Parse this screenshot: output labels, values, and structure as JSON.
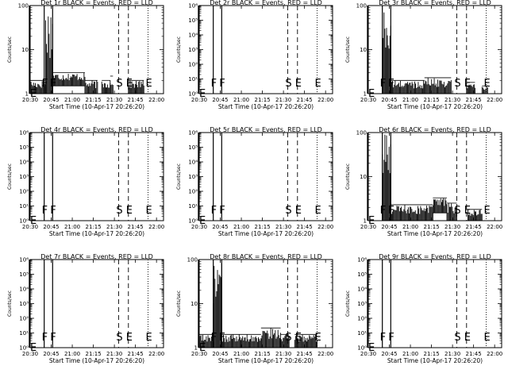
{
  "x_tick_labels": [
    "20:30",
    "20:45",
    "21:00",
    "21:15",
    "21:30",
    "21:45",
    "22:00"
  ],
  "x_label": "Start Time (10-Apr-17 20:26:20)",
  "y_label": "Counts/sec",
  "event_markers": [
    {
      "letter": "E",
      "minute": 3.4,
      "style": "solid"
    },
    {
      "letter": "F",
      "minute": 14,
      "style": "solid"
    },
    {
      "letter": "F",
      "minute": 20,
      "style": "solid"
    },
    {
      "letter": "S",
      "minute": 67,
      "style": "dashed"
    },
    {
      "letter": "E",
      "minute": 74,
      "style": "dashed"
    },
    {
      "letter": "E",
      "minute": 88,
      "style": "dotted"
    }
  ],
  "colors": {
    "events": "#000000",
    "lld": "#ff0000",
    "axes": "#000000"
  },
  "chart_data": [
    {
      "type": "line",
      "title": "Det 1r BLACK = Events, RED = LLD",
      "x_unit": "minutes since 20:26:20",
      "xlim": [
        4,
        99
      ],
      "y_scale": "log",
      "ylim": [
        1,
        100
      ],
      "y_tick_labels": [
        "1",
        "10",
        "100"
      ],
      "series": [
        {
          "name": "Events",
          "color": "#000000",
          "segments": [
            {
              "x0": 4,
              "x1": 15,
              "low": 1,
              "high": 2
            },
            {
              "x0": 15,
              "x1": 20,
              "low": 1,
              "high": 100
            },
            {
              "x0": 20,
              "x1": 43,
              "low": 1.5,
              "high": 3
            },
            {
              "x0": 43,
              "x1": 52,
              "low": 1,
              "high": 2
            },
            {
              "x0": 55,
              "x1": 61,
              "low": 1,
              "high": 2
            },
            {
              "x0": 61,
              "x1": 63,
              "low": 1,
              "high": 2.5
            },
            {
              "x0": 74,
              "x1": 85,
              "low": 1,
              "high": 2
            }
          ]
        }
      ]
    },
    {
      "type": "line",
      "title": "Det 2r BLACK = Events, RED = LLD",
      "x_unit": "minutes since 20:26:20",
      "xlim": [
        4,
        99
      ],
      "y_scale": "log",
      "ylim": [
        1,
        1000000
      ],
      "y_tick_labels": [
        "10⁰",
        "10¹",
        "10²",
        "10³",
        "10⁴",
        "10⁵",
        "10⁶"
      ],
      "series": [
        {
          "name": "Events",
          "color": "#000000",
          "segments": []
        }
      ]
    },
    {
      "type": "line",
      "title": "Det 3r BLACK = Events, RED = LLD",
      "x_unit": "minutes since 20:26:20",
      "xlim": [
        4,
        99
      ],
      "y_scale": "log",
      "ylim": [
        1,
        100
      ],
      "y_tick_labels": [
        "1",
        "10",
        "100"
      ],
      "series": [
        {
          "name": "Events",
          "color": "#000000",
          "segments": [
            {
              "x0": 14,
              "x1": 20,
              "low": 1,
              "high": 100
            },
            {
              "x0": 20,
              "x1": 44,
              "low": 1,
              "high": 2
            },
            {
              "x0": 44,
              "x1": 63,
              "low": 1,
              "high": 2.3
            },
            {
              "x0": 74,
              "x1": 80,
              "low": 1,
              "high": 1.8
            },
            {
              "x0": 85,
              "x1": 89,
              "low": 1,
              "high": 1.5
            }
          ]
        }
      ]
    },
    {
      "type": "line",
      "title": "Det 4r BLACK = Events, RED = LLD",
      "x_unit": "minutes since 20:26:20",
      "xlim": [
        4,
        99
      ],
      "y_scale": "log",
      "ylim": [
        1,
        1000000
      ],
      "y_tick_labels": [
        "10⁰",
        "10¹",
        "10²",
        "10³",
        "10⁴",
        "10⁵",
        "10⁶"
      ],
      "series": [
        {
          "name": "Events",
          "color": "#000000",
          "segments": []
        }
      ]
    },
    {
      "type": "line",
      "title": "Det 5r BLACK = Events, RED = LLD",
      "x_unit": "minutes since 20:26:20",
      "xlim": [
        4,
        99
      ],
      "y_scale": "log",
      "ylim": [
        1,
        1000000
      ],
      "y_tick_labels": [
        "10⁰",
        "10¹",
        "10²",
        "10³",
        "10⁴",
        "10⁵",
        "10⁶"
      ],
      "series": [
        {
          "name": "Events",
          "color": "#000000",
          "segments": []
        }
      ]
    },
    {
      "type": "line",
      "title": "Det 6r BLACK = Events, RED = LLD",
      "x_unit": "minutes since 20:26:20",
      "xlim": [
        4,
        99
      ],
      "y_scale": "log",
      "ylim": [
        1,
        100
      ],
      "y_tick_labels": [
        "1",
        "10",
        "100"
      ],
      "series": [
        {
          "name": "Events",
          "color": "#000000",
          "segments": [
            {
              "x0": 14,
              "x1": 20,
              "low": 1,
              "high": 100
            },
            {
              "x0": 20,
              "x1": 50,
              "low": 1,
              "high": 2.3
            },
            {
              "x0": 50,
              "x1": 60,
              "low": 1.5,
              "high": 3.3
            },
            {
              "x0": 60,
              "x1": 67,
              "low": 1,
              "high": 2.5
            },
            {
              "x0": 75,
              "x1": 85,
              "low": 1,
              "high": 1.8
            }
          ]
        }
      ]
    },
    {
      "type": "line",
      "title": "Det 7r BLACK = Events, RED = LLD",
      "x_unit": "minutes since 20:26:20",
      "xlim": [
        4,
        99
      ],
      "y_scale": "log",
      "ylim": [
        1,
        1000000
      ],
      "y_tick_labels": [
        "10⁰",
        "10¹",
        "10²",
        "10³",
        "10⁴",
        "10⁵",
        "10⁶"
      ],
      "series": [
        {
          "name": "Events",
          "color": "#000000",
          "segments": []
        }
      ]
    },
    {
      "type": "line",
      "title": "Det 8r BLACK = Events, RED = LLD",
      "x_unit": "minutes since 20:26:20",
      "xlim": [
        4,
        99
      ],
      "y_scale": "log",
      "ylim": [
        1,
        100
      ],
      "y_tick_labels": [
        "1",
        "10",
        "100"
      ],
      "series": [
        {
          "name": "Events",
          "color": "#000000",
          "segments": [
            {
              "x0": 4,
              "x1": 14,
              "low": 1,
              "high": 2
            },
            {
              "x0": 14,
              "x1": 20,
              "low": 1,
              "high": 100
            },
            {
              "x0": 20,
              "x1": 48,
              "low": 1,
              "high": 2
            },
            {
              "x0": 48,
              "x1": 62,
              "low": 1,
              "high": 2.8
            },
            {
              "x0": 62,
              "x1": 68,
              "low": 1,
              "high": 2
            },
            {
              "x0": 72,
              "x1": 88,
              "low": 1,
              "high": 2
            }
          ]
        }
      ]
    },
    {
      "type": "line",
      "title": "Det 9r BLACK = Events, RED = LLD",
      "x_unit": "minutes since 20:26:20",
      "xlim": [
        4,
        99
      ],
      "y_scale": "log",
      "ylim": [
        1,
        1000000
      ],
      "y_tick_labels": [
        "10⁰",
        "10¹",
        "10²",
        "10³",
        "10⁴",
        "10⁵",
        "10⁶"
      ],
      "series": [
        {
          "name": "Events",
          "color": "#000000",
          "segments": []
        }
      ]
    }
  ]
}
